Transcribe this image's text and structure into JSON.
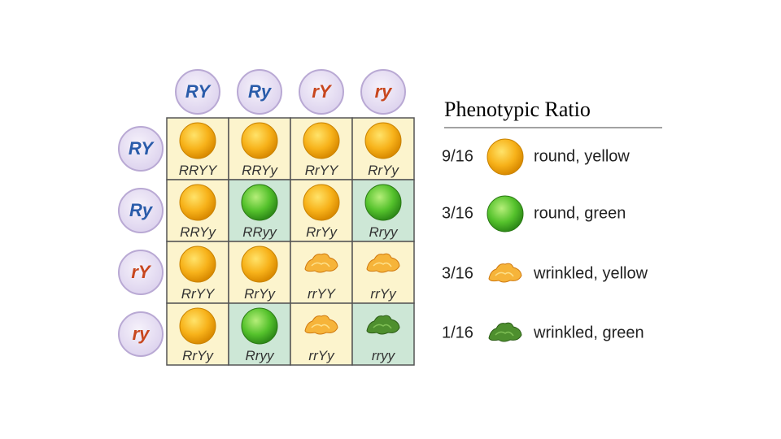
{
  "title": "Phenotypic Ratio",
  "punnett": {
    "columns": [
      "RY",
      "Ry",
      "rY",
      "ry"
    ],
    "rows": [
      "RY",
      "Ry",
      "rY",
      "ry"
    ],
    "cells": [
      [
        "RRYY",
        "RRYy",
        "RrYY",
        "RrYy"
      ],
      [
        "RRYy",
        "RRyy",
        "RrYy",
        "Rryy"
      ],
      [
        "RrYY",
        "RrYy",
        "rrYY",
        "rrYy"
      ],
      [
        "RrYy",
        "Rryy",
        "rrYy",
        "rryy"
      ]
    ]
  },
  "ratios": [
    {
      "ratio": "9/16",
      "label": "round, yellow"
    },
    {
      "ratio": "3/16",
      "label": "round, green"
    },
    {
      "ratio": "3/16",
      "label": "wrinkled, yellow"
    },
    {
      "ratio": "1/16",
      "label": "wrinkled, green"
    }
  ]
}
